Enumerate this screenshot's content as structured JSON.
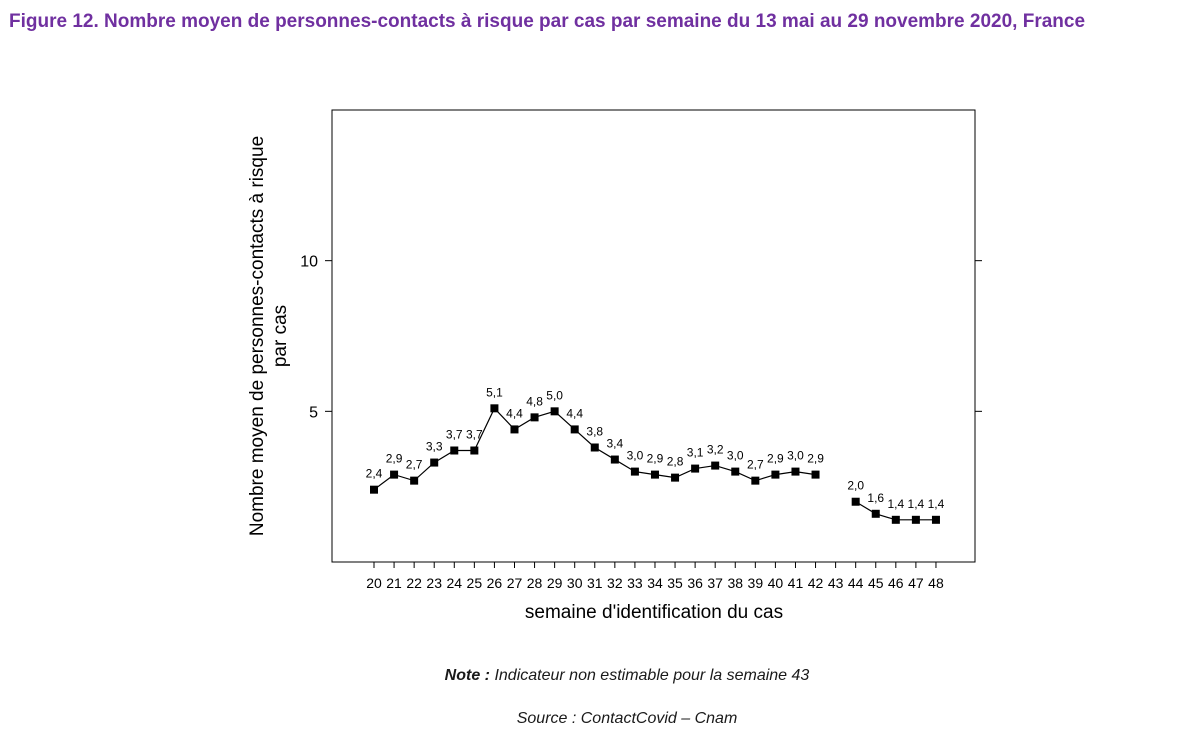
{
  "figure": {
    "title": "Figure 12. Nombre moyen de personnes-contacts à risque par cas par semaine du 13 mai au 29 novembre 2020, France",
    "title_color": "#7030a0",
    "note_label": "Note :",
    "note_text": "Indicateur non estimable pour la semaine 43",
    "source": "Source : ContactCovid – Cnam"
  },
  "chart_data": {
    "type": "line",
    "title": "",
    "xlabel": "semaine d'identification du cas",
    "ylabel_lines": [
      "Nombre moyen de personnes-contacts à risque",
      "par cas"
    ],
    "categories": [
      "20",
      "21",
      "22",
      "23",
      "24",
      "25",
      "26",
      "27",
      "28",
      "29",
      "30",
      "31",
      "32",
      "33",
      "34",
      "35",
      "36",
      "37",
      "38",
      "39",
      "40",
      "41",
      "42",
      "43",
      "44",
      "45",
      "46",
      "47",
      "48"
    ],
    "ylim": [
      0,
      15
    ],
    "yticks": [
      5,
      10
    ],
    "grid": false,
    "legend": "none",
    "series": [
      {
        "values": [
          2.4,
          2.9,
          2.7,
          3.3,
          3.7,
          3.7,
          5.1,
          4.4,
          4.8,
          5.0,
          4.4,
          3.8,
          3.4,
          3.0,
          2.9,
          2.8,
          3.1,
          3.2,
          3.0,
          2.7,
          2.9,
          3.0,
          2.9,
          null,
          2.0,
          1.6,
          1.4,
          1.4,
          1.4
        ],
        "labels": [
          "2,4",
          "2,9",
          "2,7",
          "3,3",
          "3,7",
          "3,7",
          "5,1",
          "4,4",
          "4,8",
          "5,0",
          "4,4",
          "3,8",
          "3,4",
          "3,0",
          "2,9",
          "2,8",
          "3,1",
          "3,2",
          "3,0",
          "2,7",
          "2,9",
          "3,0",
          "2,9",
          "",
          "2,0",
          "1,6",
          "1,4",
          "1,4",
          "1,4"
        ]
      }
    ]
  }
}
